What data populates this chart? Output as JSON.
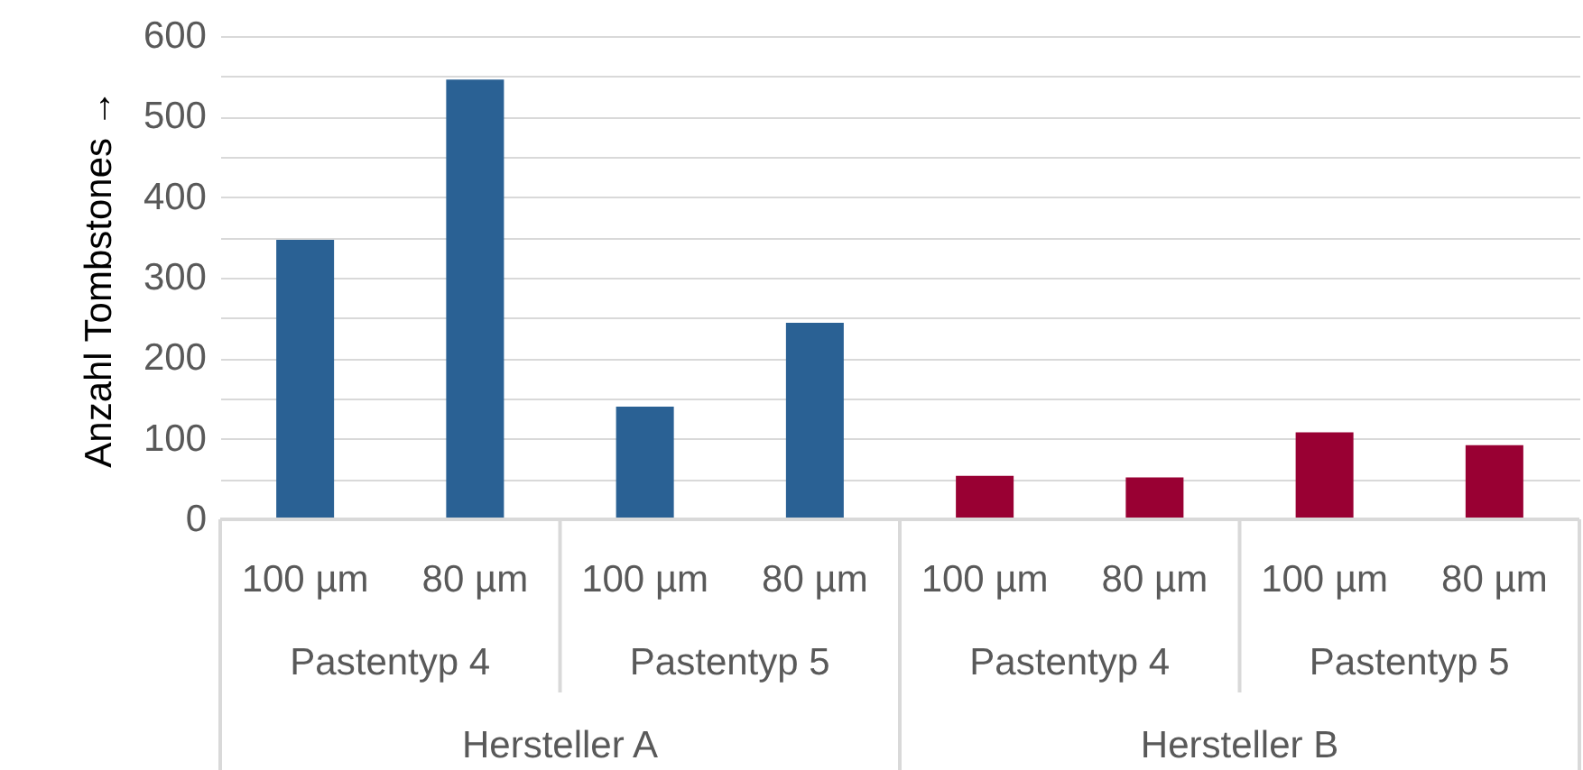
{
  "chart_data": {
    "type": "bar",
    "ylabel": "Anzahl Tombstones →",
    "categories": [
      "100 µm",
      "80 µm",
      "100 µm",
      "80 µm",
      "100 µm",
      "80 µm",
      "100 µm",
      "80 µm"
    ],
    "values": [
      347,
      546,
      140,
      244,
      54,
      52,
      108,
      92
    ],
    "colors": [
      "#2a6194",
      "#2a6194",
      "#2a6194",
      "#2a6194",
      "#990033",
      "#990033",
      "#990033",
      "#990033"
    ],
    "annotations": [
      "Pastentyp 4",
      "Pastentyp 5",
      "Pastentyp 4",
      "Pastentyp 5",
      "Hersteller A",
      "Hersteller B"
    ],
    "ylim": [
      0,
      600
    ],
    "yticks": [
      0,
      {
        "value": 50,
        "label": null
      },
      100,
      {
        "value": 150,
        "label": null
      },
      200,
      {
        "value": 250,
        "label": null
      },
      300,
      {
        "value": 350,
        "label": null
      },
      400,
      {
        "value": 450,
        "label": null
      },
      500,
      {
        "value": 550,
        "label": null
      },
      600
    ],
    "grid": true
  }
}
